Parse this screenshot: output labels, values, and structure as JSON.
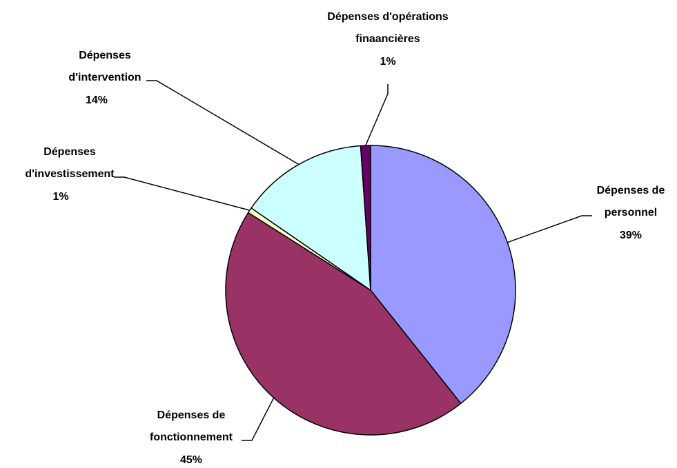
{
  "chart_data": {
    "type": "pie",
    "title": "",
    "slices": [
      {
        "label": [
          "Dépenses de",
          "personnel"
        ],
        "percent_label": "39%",
        "value": 39.3,
        "color": "#9999FF"
      },
      {
        "label": [
          "Dépenses de",
          "fonctionnement"
        ],
        "percent_label": "45%",
        "value": 44.7,
        "color": "#993366"
      },
      {
        "label": [
          "Dépenses",
          "d'investissement"
        ],
        "percent_label": "1%",
        "value": 0.6,
        "color": "#FFFFCC"
      },
      {
        "label": [
          "Dépenses",
          "d'intervention"
        ],
        "percent_label": "14%",
        "value": 14.3,
        "color": "#CCFFFF"
      },
      {
        "label": [
          "Dépenses d'opérations",
          "finaancières"
        ],
        "percent_label": "1%",
        "value": 1.1,
        "color": "#660066"
      }
    ]
  }
}
